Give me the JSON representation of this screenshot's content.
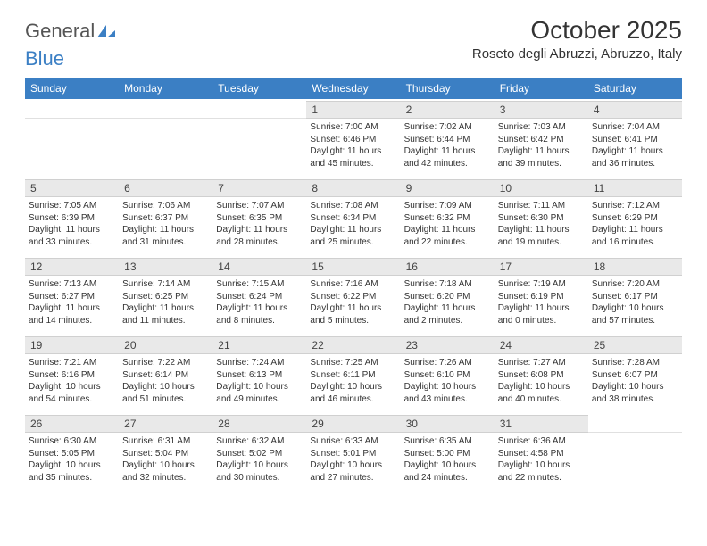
{
  "brand": {
    "part1": "General",
    "part2": "Blue"
  },
  "title": "October 2025",
  "location": "Roseto degli Abruzzi, Abruzzo, Italy",
  "colors": {
    "header_bg": "#3b7fc4",
    "header_text": "#ffffff",
    "daynum_bg": "#e9e9e9",
    "body_text": "#333333",
    "page_bg": "#ffffff"
  },
  "day_headers": [
    "Sunday",
    "Monday",
    "Tuesday",
    "Wednesday",
    "Thursday",
    "Friday",
    "Saturday"
  ],
  "weeks": [
    [
      {
        "n": "",
        "sr": "",
        "ss": "",
        "dl": ""
      },
      {
        "n": "",
        "sr": "",
        "ss": "",
        "dl": ""
      },
      {
        "n": "",
        "sr": "",
        "ss": "",
        "dl": ""
      },
      {
        "n": "1",
        "sr": "Sunrise: 7:00 AM",
        "ss": "Sunset: 6:46 PM",
        "dl": "Daylight: 11 hours and 45 minutes."
      },
      {
        "n": "2",
        "sr": "Sunrise: 7:02 AM",
        "ss": "Sunset: 6:44 PM",
        "dl": "Daylight: 11 hours and 42 minutes."
      },
      {
        "n": "3",
        "sr": "Sunrise: 7:03 AM",
        "ss": "Sunset: 6:42 PM",
        "dl": "Daylight: 11 hours and 39 minutes."
      },
      {
        "n": "4",
        "sr": "Sunrise: 7:04 AM",
        "ss": "Sunset: 6:41 PM",
        "dl": "Daylight: 11 hours and 36 minutes."
      }
    ],
    [
      {
        "n": "5",
        "sr": "Sunrise: 7:05 AM",
        "ss": "Sunset: 6:39 PM",
        "dl": "Daylight: 11 hours and 33 minutes."
      },
      {
        "n": "6",
        "sr": "Sunrise: 7:06 AM",
        "ss": "Sunset: 6:37 PM",
        "dl": "Daylight: 11 hours and 31 minutes."
      },
      {
        "n": "7",
        "sr": "Sunrise: 7:07 AM",
        "ss": "Sunset: 6:35 PM",
        "dl": "Daylight: 11 hours and 28 minutes."
      },
      {
        "n": "8",
        "sr": "Sunrise: 7:08 AM",
        "ss": "Sunset: 6:34 PM",
        "dl": "Daylight: 11 hours and 25 minutes."
      },
      {
        "n": "9",
        "sr": "Sunrise: 7:09 AM",
        "ss": "Sunset: 6:32 PM",
        "dl": "Daylight: 11 hours and 22 minutes."
      },
      {
        "n": "10",
        "sr": "Sunrise: 7:11 AM",
        "ss": "Sunset: 6:30 PM",
        "dl": "Daylight: 11 hours and 19 minutes."
      },
      {
        "n": "11",
        "sr": "Sunrise: 7:12 AM",
        "ss": "Sunset: 6:29 PM",
        "dl": "Daylight: 11 hours and 16 minutes."
      }
    ],
    [
      {
        "n": "12",
        "sr": "Sunrise: 7:13 AM",
        "ss": "Sunset: 6:27 PM",
        "dl": "Daylight: 11 hours and 14 minutes."
      },
      {
        "n": "13",
        "sr": "Sunrise: 7:14 AM",
        "ss": "Sunset: 6:25 PM",
        "dl": "Daylight: 11 hours and 11 minutes."
      },
      {
        "n": "14",
        "sr": "Sunrise: 7:15 AM",
        "ss": "Sunset: 6:24 PM",
        "dl": "Daylight: 11 hours and 8 minutes."
      },
      {
        "n": "15",
        "sr": "Sunrise: 7:16 AM",
        "ss": "Sunset: 6:22 PM",
        "dl": "Daylight: 11 hours and 5 minutes."
      },
      {
        "n": "16",
        "sr": "Sunrise: 7:18 AM",
        "ss": "Sunset: 6:20 PM",
        "dl": "Daylight: 11 hours and 2 minutes."
      },
      {
        "n": "17",
        "sr": "Sunrise: 7:19 AM",
        "ss": "Sunset: 6:19 PM",
        "dl": "Daylight: 11 hours and 0 minutes."
      },
      {
        "n": "18",
        "sr": "Sunrise: 7:20 AM",
        "ss": "Sunset: 6:17 PM",
        "dl": "Daylight: 10 hours and 57 minutes."
      }
    ],
    [
      {
        "n": "19",
        "sr": "Sunrise: 7:21 AM",
        "ss": "Sunset: 6:16 PM",
        "dl": "Daylight: 10 hours and 54 minutes."
      },
      {
        "n": "20",
        "sr": "Sunrise: 7:22 AM",
        "ss": "Sunset: 6:14 PM",
        "dl": "Daylight: 10 hours and 51 minutes."
      },
      {
        "n": "21",
        "sr": "Sunrise: 7:24 AM",
        "ss": "Sunset: 6:13 PM",
        "dl": "Daylight: 10 hours and 49 minutes."
      },
      {
        "n": "22",
        "sr": "Sunrise: 7:25 AM",
        "ss": "Sunset: 6:11 PM",
        "dl": "Daylight: 10 hours and 46 minutes."
      },
      {
        "n": "23",
        "sr": "Sunrise: 7:26 AM",
        "ss": "Sunset: 6:10 PM",
        "dl": "Daylight: 10 hours and 43 minutes."
      },
      {
        "n": "24",
        "sr": "Sunrise: 7:27 AM",
        "ss": "Sunset: 6:08 PM",
        "dl": "Daylight: 10 hours and 40 minutes."
      },
      {
        "n": "25",
        "sr": "Sunrise: 7:28 AM",
        "ss": "Sunset: 6:07 PM",
        "dl": "Daylight: 10 hours and 38 minutes."
      }
    ],
    [
      {
        "n": "26",
        "sr": "Sunrise: 6:30 AM",
        "ss": "Sunset: 5:05 PM",
        "dl": "Daylight: 10 hours and 35 minutes."
      },
      {
        "n": "27",
        "sr": "Sunrise: 6:31 AM",
        "ss": "Sunset: 5:04 PM",
        "dl": "Daylight: 10 hours and 32 minutes."
      },
      {
        "n": "28",
        "sr": "Sunrise: 6:32 AM",
        "ss": "Sunset: 5:02 PM",
        "dl": "Daylight: 10 hours and 30 minutes."
      },
      {
        "n": "29",
        "sr": "Sunrise: 6:33 AM",
        "ss": "Sunset: 5:01 PM",
        "dl": "Daylight: 10 hours and 27 minutes."
      },
      {
        "n": "30",
        "sr": "Sunrise: 6:35 AM",
        "ss": "Sunset: 5:00 PM",
        "dl": "Daylight: 10 hours and 24 minutes."
      },
      {
        "n": "31",
        "sr": "Sunrise: 6:36 AM",
        "ss": "Sunset: 4:58 PM",
        "dl": "Daylight: 10 hours and 22 minutes."
      },
      {
        "n": "",
        "sr": "",
        "ss": "",
        "dl": ""
      }
    ]
  ]
}
